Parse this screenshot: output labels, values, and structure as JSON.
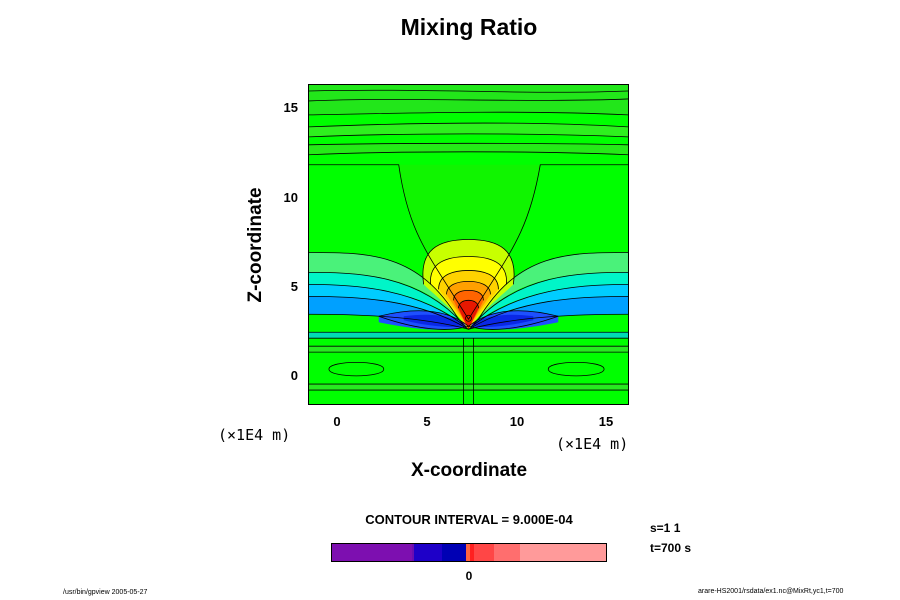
{
  "chart_data": {
    "type": "contour",
    "title": "Mixing Ratio",
    "xlabel": "X-coordinate",
    "ylabel": "Z-coordinate",
    "x_unit": "(×1E4 m)",
    "y_unit": "(×1E4 m)",
    "xlim": [
      -1.6,
      16.2
    ],
    "ylim": [
      -1.6,
      16.2
    ],
    "xticks": [
      "0",
      "5",
      "10",
      "15"
    ],
    "yticks": [
      "0",
      "5",
      "10",
      "15"
    ],
    "contour_interval": "CONTOUR INTERVAL = 9.000E-04",
    "colorbar": {
      "tick_label": "0",
      "colors": [
        "#7d0fb0",
        "#6a0db0",
        "#1e00c8",
        "#0000b4",
        "#ff6440",
        "#ff2020",
        "#ff4646",
        "#ff6e6e",
        "#ff9a9a"
      ]
    },
    "features": {
      "maximum_center": {
        "x": 7.2,
        "z": 3.0,
        "color": "#e81800"
      },
      "minimum_band": {
        "x": 7.2,
        "z": 3.4,
        "color": "#1e3cff"
      },
      "background_color": "#00ff00"
    }
  },
  "annotations": {
    "step": "s=1 1",
    "time": "t=700 s",
    "footer_left": "/usr/bin/gpview 2005-05-27",
    "footer_right": "arare-HS2001/rsdata/ex1.nc@MixRt,yc1,t=700"
  }
}
